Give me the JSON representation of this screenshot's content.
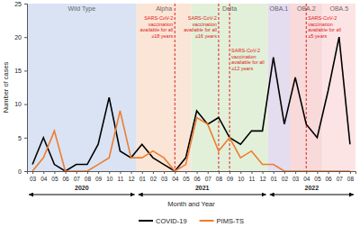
{
  "chart_data": {
    "type": "line",
    "x_label": "Month and Year",
    "y_label": "Number of cases",
    "categories": [
      "03",
      "04",
      "05",
      "06",
      "07",
      "08",
      "09",
      "10",
      "11",
      "12",
      "01",
      "02",
      "03",
      "04",
      "05",
      "06",
      "07",
      "08",
      "09",
      "10",
      "11",
      "12",
      "01",
      "02",
      "03",
      "04",
      "05",
      "06",
      "07",
      "08"
    ],
    "year_groups": [
      {
        "label": "2020",
        "start": 0,
        "end": 9
      },
      {
        "label": "2021",
        "start": 10,
        "end": 21
      },
      {
        "label": "2022",
        "start": 22,
        "end": 29
      }
    ],
    "series": [
      {
        "name": "COVID-19",
        "color": "#000000",
        "values": [
          1,
          5,
          1,
          0,
          1,
          1,
          4,
          11,
          3,
          2,
          4,
          2,
          1,
          0,
          2,
          9,
          7,
          8,
          5,
          4,
          6,
          6,
          17,
          7,
          14,
          7,
          5,
          12,
          20,
          4
        ]
      },
      {
        "name": "PIMS-TS",
        "color": "#ed7d31",
        "values": [
          0,
          2,
          6,
          0,
          0,
          0,
          1,
          2,
          9,
          2,
          2,
          3,
          2,
          0,
          1,
          8,
          7,
          3,
          5,
          2,
          3,
          1,
          1,
          0,
          0,
          0,
          0,
          0,
          0,
          0
        ]
      }
    ],
    "periods": [
      {
        "label": "Wild Type",
        "start": -0.5,
        "end": 9.5,
        "color": "#dae3f3"
      },
      {
        "label": "Alpha",
        "start": 9.5,
        "end": 14.5,
        "color": "#fbe5d6"
      },
      {
        "label": "Delta",
        "start": 14.5,
        "end": 21.5,
        "color": "#e2f0d9"
      },
      {
        "label": "OBA.1",
        "start": 21.5,
        "end": 23.5,
        "color": "#e4dcef"
      },
      {
        "label": "OBA.2",
        "start": 23.5,
        "end": 26.5,
        "color": "#f8dada"
      },
      {
        "label": "OBA.5",
        "start": 26.5,
        "end": 29.5,
        "color": "#fce4e4"
      }
    ],
    "annotations": [
      {
        "x": 13,
        "color": "#e02020",
        "text": [
          "SARS-CoV-2",
          "vaccination",
          "available for all",
          "≥18 years"
        ]
      },
      {
        "x": 17,
        "color": "#e02020",
        "text": [
          "SARS-CoV-2",
          "vaccination",
          "available for all",
          "≥16 years"
        ]
      },
      {
        "x": 18,
        "color": "#e02020",
        "text": [
          "SARS-CoV-2",
          "vaccination",
          "available for all",
          "≥12 years"
        ]
      },
      {
        "x": 25,
        "color": "#e02020",
        "text": [
          "SARS-CoV-2",
          "vaccination",
          "available for all",
          "≥5 years"
        ]
      }
    ],
    "ylim": [
      0,
      25
    ],
    "yticks": [
      0,
      5,
      10,
      15,
      20,
      25
    ],
    "grid": false,
    "legend": "bottom"
  }
}
